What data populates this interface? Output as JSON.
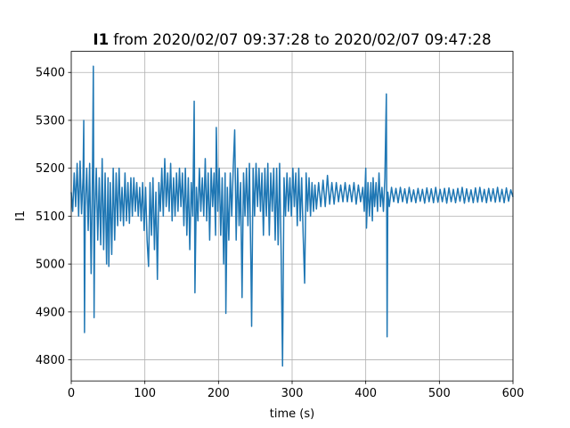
{
  "chart_data": {
    "type": "line",
    "title_bold": "I1",
    "title_rest": "from 2020/02/07 09:37:28 to 2020/02/07 09:47:28",
    "xlabel": "time (s)",
    "ylabel": "I1",
    "color": "#1f77b4",
    "grid": true,
    "xlim": [
      0,
      600
    ],
    "xticks": [
      0,
      100,
      200,
      300,
      400,
      500,
      600
    ],
    "ylim": [
      4756,
      5444
    ],
    "yticks": [
      4800,
      4900,
      5000,
      5100,
      5200,
      5300,
      5400
    ],
    "x": [
      0,
      2,
      4,
      6,
      8,
      10,
      12,
      14,
      16,
      17,
      18,
      19,
      21,
      23,
      25,
      27,
      29,
      30,
      31,
      32,
      34,
      36,
      38,
      40,
      42,
      44,
      46,
      48,
      50,
      51,
      53,
      55,
      57,
      59,
      61,
      63,
      65,
      67,
      69,
      71,
      73,
      75,
      77,
      79,
      81,
      83,
      85,
      87,
      89,
      91,
      93,
      95,
      97,
      99,
      101,
      103,
      105,
      107,
      109,
      111,
      113,
      115,
      117,
      119,
      121,
      123,
      125,
      127,
      129,
      131,
      133,
      135,
      137,
      139,
      141,
      143,
      145,
      147,
      149,
      151,
      153,
      155,
      157,
      159,
      161,
      163,
      165,
      167,
      168,
      170,
      172,
      174,
      176,
      178,
      180,
      182,
      184,
      186,
      188,
      190,
      192,
      194,
      196,
      197,
      199,
      201,
      203,
      205,
      207,
      209,
      210,
      212,
      214,
      216,
      218,
      220,
      222,
      224,
      226,
      228,
      230,
      232,
      234,
      236,
      238,
      240,
      242,
      244,
      245,
      247,
      249,
      251,
      253,
      255,
      257,
      259,
      261,
      263,
      265,
      267,
      269,
      271,
      273,
      275,
      277,
      279,
      281,
      283,
      285,
      287,
      289,
      291,
      293,
      295,
      297,
      299,
      301,
      303,
      305,
      307,
      309,
      311,
      313,
      315,
      317,
      319,
      321,
      323,
      325,
      327,
      329,
      331,
      333,
      336,
      339,
      342,
      345,
      348,
      351,
      354,
      357,
      360,
      363,
      366,
      369,
      372,
      375,
      378,
      381,
      384,
      387,
      390,
      393,
      396,
      398,
      400,
      401,
      403,
      405,
      407,
      409,
      410,
      412,
      414,
      416,
      418,
      420,
      422,
      424,
      426,
      428,
      429,
      430,
      432,
      435,
      438,
      441,
      444,
      447,
      450,
      453,
      456,
      459,
      462,
      465,
      468,
      471,
      474,
      477,
      480,
      483,
      486,
      489,
      492,
      495,
      498,
      501,
      504,
      507,
      510,
      513,
      516,
      519,
      522,
      525,
      528,
      531,
      534,
      537,
      540,
      543,
      546,
      549,
      552,
      555,
      558,
      561,
      564,
      567,
      570,
      573,
      576,
      579,
      582,
      585,
      588,
      591,
      594,
      597,
      600
    ],
    "values": [
      5150,
      5110,
      5190,
      5120,
      5210,
      5100,
      5215,
      5105,
      5180,
      5300,
      4857,
      5120,
      5200,
      5070,
      5210,
      4980,
      5210,
      5413,
      4888,
      5100,
      5200,
      5050,
      5180,
      5040,
      5220,
      5030,
      5190,
      5000,
      5180,
      4995,
      5170,
      5020,
      5200,
      5050,
      5190,
      5080,
      5200,
      5090,
      5160,
      5080,
      5190,
      5090,
      5170,
      5085,
      5180,
      5100,
      5180,
      5110,
      5170,
      5100,
      5160,
      5090,
      5170,
      5070,
      5160,
      5050,
      4995,
      5170,
      5060,
      5180,
      5030,
      5150,
      4968,
      5170,
      5110,
      5200,
      5100,
      5220,
      5120,
      5190,
      5110,
      5210,
      5090,
      5180,
      5100,
      5190,
      5110,
      5200,
      5120,
      5190,
      5080,
      5200,
      5060,
      5180,
      5030,
      5170,
      5100,
      5340,
      4940,
      5160,
      5090,
      5200,
      5110,
      5180,
      5100,
      5220,
      5090,
      5190,
      5050,
      5200,
      5120,
      5190,
      5060,
      5285,
      5110,
      5200,
      5060,
      5180,
      5000,
      5190,
      4897,
      5160,
      5050,
      5190,
      5100,
      5200,
      5280,
      5050,
      5200,
      5080,
      5170,
      4930,
      5190,
      5100,
      5200,
      5080,
      5210,
      5000,
      4870,
      5200,
      5100,
      5210,
      5120,
      5200,
      5110,
      5190,
      5060,
      5200,
      5100,
      5210,
      5060,
      5190,
      5110,
      5200,
      5050,
      5200,
      5040,
      5210,
      5030,
      4787,
      5180,
      5100,
      5190,
      5110,
      5180,
      5100,
      5200,
      5120,
      5190,
      5080,
      5200,
      5090,
      5180,
      5060,
      4960,
      5190,
      5110,
      5180,
      5100,
      5170,
      5110,
      5165,
      5115,
      5170,
      5120,
      5175,
      5120,
      5185,
      5125,
      5170,
      5125,
      5170,
      5130,
      5165,
      5130,
      5170,
      5130,
      5165,
      5130,
      5170,
      5125,
      5165,
      5130,
      5160,
      5110,
      5200,
      5075,
      5170,
      5100,
      5170,
      5090,
      5180,
      5120,
      5170,
      5110,
      5190,
      5120,
      5160,
      5110,
      5180,
      5355,
      4848,
      5150,
      5120,
      5160,
      5130,
      5158,
      5128,
      5160,
      5130,
      5157,
      5127,
      5160,
      5130,
      5155,
      5128,
      5158,
      5131,
      5156,
      5127,
      5159,
      5130,
      5157,
      5128,
      5160,
      5129,
      5156,
      5130,
      5158,
      5127,
      5159,
      5130,
      5156,
      5128,
      5158,
      5131,
      5160,
      5127,
      5157,
      5130,
      5155,
      5128,
      5159,
      5129,
      5160,
      5130,
      5156,
      5128,
      5158,
      5131,
      5157,
      5129,
      5160,
      5130,
      5156,
      5128,
      5159,
      5131,
      5155,
      5140
    ]
  }
}
